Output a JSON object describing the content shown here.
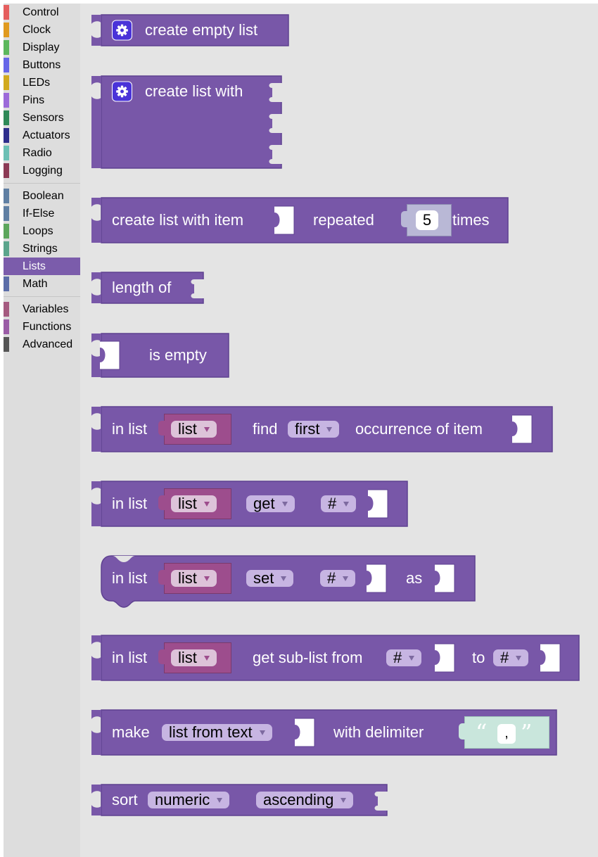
{
  "sidebar": {
    "groups": [
      [
        {
          "label": "Control",
          "color": "#e55e5e"
        },
        {
          "label": "Clock",
          "color": "#e09a1f"
        },
        {
          "label": "Display",
          "color": "#5cb85c"
        },
        {
          "label": "Buttons",
          "color": "#6666e8"
        },
        {
          "label": "LEDs",
          "color": "#d1aa1e"
        },
        {
          "label": "Pins",
          "color": "#9c6ad9"
        },
        {
          "label": "Sensors",
          "color": "#2f8a58"
        },
        {
          "label": "Actuators",
          "color": "#2e2e8c"
        },
        {
          "label": "Radio",
          "color": "#6cc0b5"
        },
        {
          "label": "Logging",
          "color": "#8c3a55"
        }
      ],
      [
        {
          "label": "Boolean",
          "color": "#5f7fa3"
        },
        {
          "label": "If-Else",
          "color": "#5f7fa3"
        },
        {
          "label": "Loops",
          "color": "#5ca65c"
        },
        {
          "label": "Strings",
          "color": "#5ba58c"
        },
        {
          "label": "Lists",
          "color": "#7b5cab",
          "selected": true
        },
        {
          "label": "Math",
          "color": "#5b6da8"
        }
      ],
      [
        {
          "label": "Variables",
          "color": "#a55b80"
        },
        {
          "label": "Functions",
          "color": "#9a5ca6"
        },
        {
          "label": "Advanced",
          "color": "#555555"
        }
      ]
    ]
  },
  "colors": {
    "list_block": "#7857a8",
    "list_block_border": "#5e4190",
    "variable_block": "#9d4d8d"
  },
  "blocks": {
    "create_empty": {
      "label": "create empty list",
      "icon": "gear-icon"
    },
    "create_with": {
      "label": "create list with",
      "icon": "gear-icon"
    },
    "repeat": {
      "label1": "create list with item",
      "label2": "repeated",
      "count": "5",
      "label3": "times"
    },
    "length": {
      "label": "length of"
    },
    "is_empty": {
      "label": "is empty"
    },
    "find": {
      "label1": "in list",
      "var": "list",
      "label2": "find",
      "mode": "first",
      "label3": "occurrence of item"
    },
    "get": {
      "label1": "in list",
      "var": "list",
      "mode": "get",
      "where": "#"
    },
    "set": {
      "label1": "in list",
      "var": "list",
      "mode": "set",
      "where": "#",
      "label2": "as"
    },
    "sublist": {
      "label1": "in list",
      "var": "list",
      "label2": "get sub-list from",
      "where1": "#",
      "label3": "to",
      "where2": "#"
    },
    "split": {
      "label1": "make",
      "mode": "list from text",
      "label2": "with delimiter",
      "open_quote": "“",
      "delimiter": ",",
      "close_quote": "”"
    },
    "sort": {
      "label1": "sort",
      "type": "numeric",
      "order": "ascending"
    }
  }
}
